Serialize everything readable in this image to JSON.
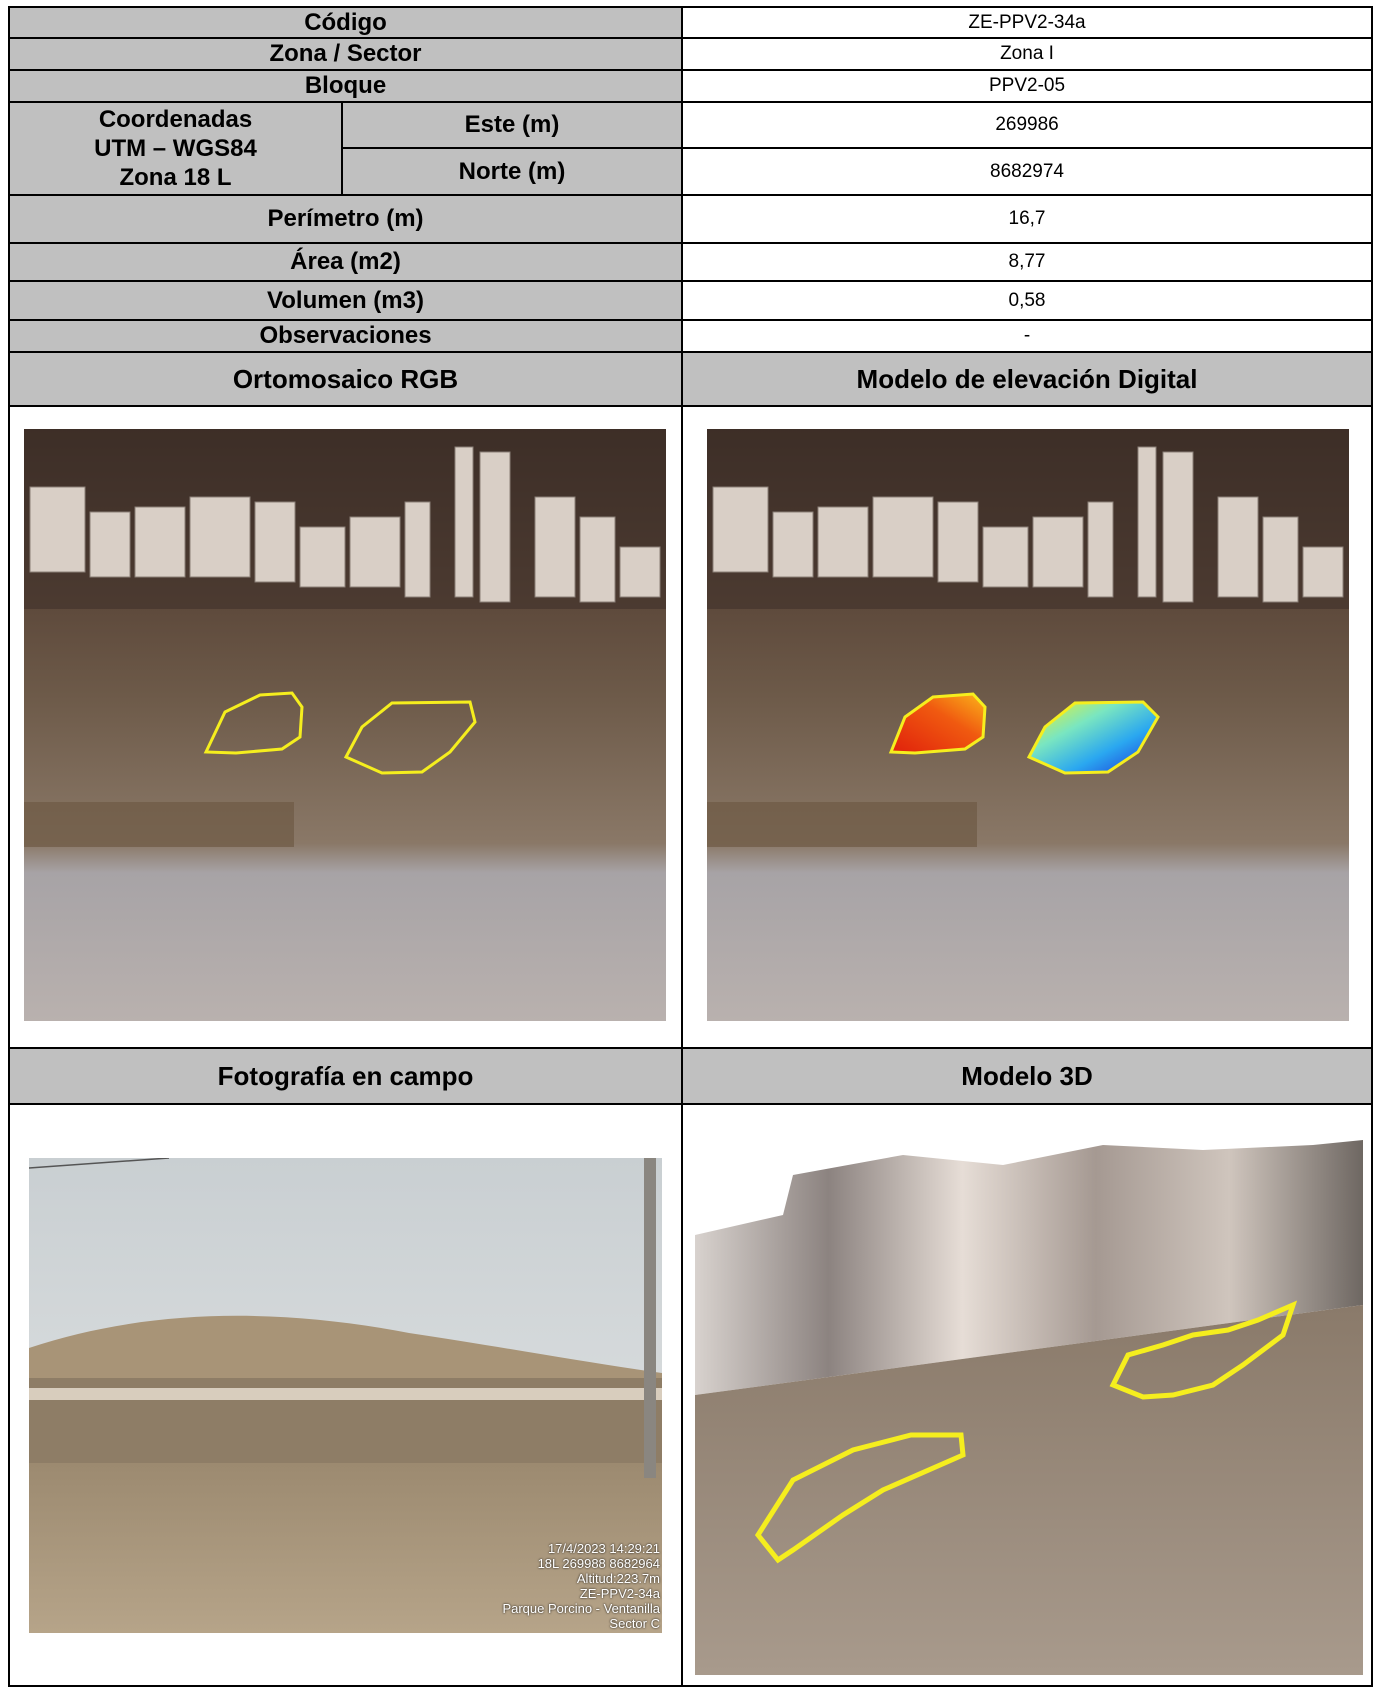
{
  "rows": [
    {
      "label": "Código",
      "value": "ZE-PPV2-34a"
    },
    {
      "label": "Zona / Sector",
      "value": "Zona I"
    },
    {
      "label": "Bloque",
      "value": "PPV2-05"
    }
  ],
  "coords": {
    "label_line1": "Coordenadas",
    "label_line2": "UTM – WGS84",
    "label_line3": "Zona 18 L",
    "este_label": "Este (m)",
    "este_value": "269986",
    "norte_label": "Norte (m)",
    "norte_value": "8682974"
  },
  "metrics": [
    {
      "label": "Perímetro (m)",
      "value": "16,7"
    },
    {
      "label": "Área (m2)",
      "value": "8,77"
    },
    {
      "label": "Volumen (m3)",
      "value": "0,58"
    },
    {
      "label": "Observaciones",
      "value": "-"
    }
  ],
  "sections": {
    "ortho": "Ortomosaico RGB",
    "dem": "Modelo de elevación Digital",
    "photo": "Fotografía en campo",
    "model3d": "Modelo 3D"
  },
  "photo_stamp": {
    "line1": "17/4/2023 14:29:21",
    "line2": "18L 269988 8682964",
    "line3": "Altitud:223.7m",
    "line4": "ZE-PPV2-34a",
    "line5": "Parque Porcino - Ventanilla",
    "line6": "Sector C"
  },
  "colors": {
    "header_gray": "#c0c0c0",
    "polygon_yellow": "#f5ee1e"
  }
}
